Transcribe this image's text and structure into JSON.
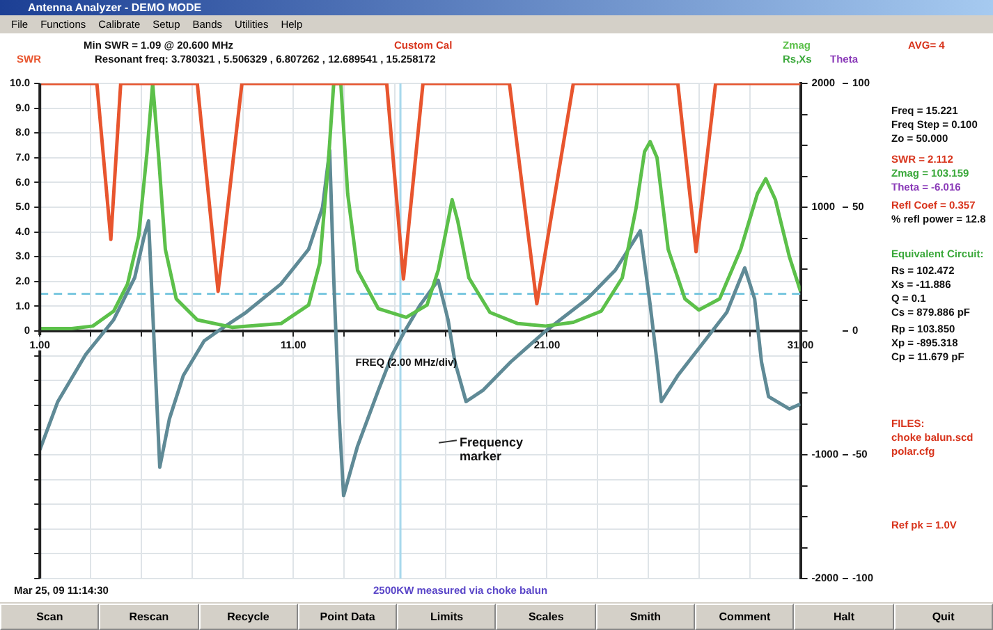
{
  "chart_data": {
    "type": "line",
    "title": "Antenna Analyzer - DEMO MODE",
    "xlabel": "FREQ (2.00 MHz/div)",
    "ylabel": "SWR",
    "y2label": "Rs,Xs",
    "y3label": "Theta",
    "xlim": [
      1,
      31
    ],
    "xticks": [
      {
        "value": 1,
        "label": "1.00"
      },
      {
        "value": 3,
        "label": null
      },
      {
        "value": 5,
        "label": null
      },
      {
        "value": 7,
        "label": null
      },
      {
        "value": 9,
        "label": null
      },
      {
        "value": 11,
        "label": "11.00"
      },
      {
        "value": 13,
        "label": null
      },
      {
        "value": 15,
        "label": null
      },
      {
        "value": 17,
        "label": null
      },
      {
        "value": 19,
        "label": null
      },
      {
        "value": 21,
        "label": "21.00"
      },
      {
        "value": 23,
        "label": null
      },
      {
        "value": 25,
        "label": null
      },
      {
        "value": 27,
        "label": null
      },
      {
        "value": 29,
        "label": null
      },
      {
        "value": 31,
        "label": "31.00"
      }
    ],
    "ylim": [
      -10,
      10
    ],
    "yticks": [
      {
        "value": -10,
        "label": null
      },
      {
        "value": -9,
        "label": null
      },
      {
        "value": -8,
        "label": null
      },
      {
        "value": -7,
        "label": null
      },
      {
        "value": -6,
        "label": null
      },
      {
        "value": -5,
        "label": null
      },
      {
        "value": -4,
        "label": null
      },
      {
        "value": -3,
        "label": null
      },
      {
        "value": -2,
        "label": null
      },
      {
        "value": -1,
        "label": null
      },
      0,
      {
        "value": 1,
        "label": "1.0"
      },
      {
        "value": 2,
        "label": "2.0"
      },
      {
        "value": 3,
        "label": "3.0"
      },
      {
        "value": 4,
        "label": "4.0"
      },
      {
        "value": 5,
        "label": "5.0"
      },
      {
        "value": 6,
        "label": "6.0"
      },
      {
        "value": 7,
        "label": "7.0"
      },
      {
        "value": 8,
        "label": "8.0"
      },
      {
        "value": 9,
        "label": "9.0"
      },
      {
        "value": 10,
        "label": "10.0"
      }
    ],
    "y2lim": [
      -2000,
      2000
    ],
    "y2ticks": [
      -2000,
      {
        "value": -1750,
        "label": null
      },
      {
        "value": -1500,
        "label": null
      },
      {
        "value": -1250,
        "label": null
      },
      -1000,
      {
        "value": -750,
        "label": null
      },
      {
        "value": -500,
        "label": null
      },
      {
        "value": -250,
        "label": null
      },
      {
        "value": 0,
        "label": null
      },
      {
        "value": 250,
        "label": null
      },
      {
        "value": 500,
        "label": null
      },
      {
        "value": 750,
        "label": null
      },
      1000,
      {
        "value": 1250,
        "label": null
      },
      {
        "value": 1500,
        "label": null
      },
      {
        "value": 1750,
        "label": null
      },
      2000
    ],
    "y3lim": [
      -100,
      100
    ],
    "y3ticks": [
      -100,
      -50,
      0,
      50,
      100
    ],
    "grid": true,
    "legend": "top right",
    "marker": "none",
    "line_style": "solid",
    "series": [
      {
        "color": "#e8552e",
        "x": [
          1,
          3.25,
          3.8,
          4.19,
          7.21,
          8.03,
          8.97,
          14.68,
          15.34,
          16.11,
          19.52,
          20.6,
          22.04,
          26.16,
          26.88,
          27.65,
          31
        ],
        "values": [
          10,
          10,
          3.7,
          10,
          10,
          1.6,
          10,
          10,
          2.1,
          10,
          10,
          1.1,
          10,
          10,
          3.2,
          10,
          10
        ]
      },
      {
        "name": "Zmag",
        "color": "#5cc04a",
        "axis": "y2",
        "x": [
          1,
          2.26,
          3.09,
          3.91,
          4.46,
          4.9,
          5.23,
          5.45,
          5.67,
          5.95,
          6.38,
          7.21,
          8.58,
          10.51,
          11.6,
          12.04,
          12.37,
          12.59,
          12.87,
          13.14,
          13.53,
          14.35,
          15.45,
          16.27,
          16.71,
          17.1,
          17.26,
          17.48,
          17.92,
          18.75,
          19.85,
          20.95,
          22.04,
          23.14,
          23.97,
          24.52,
          24.85,
          25.07,
          25.34,
          25.78,
          26.44,
          26.99,
          27.81,
          28.64,
          29.3,
          29.63,
          30.01,
          30.56,
          31
        ],
        "values": [
          20,
          20,
          40,
          160,
          380,
          770,
          1450,
          2000,
          1450,
          660,
          260,
          90,
          30,
          60,
          210,
          550,
          1340,
          2000,
          2000,
          1110,
          490,
          180,
          110,
          210,
          490,
          890,
          1060,
          890,
          430,
          150,
          60,
          40,
          70,
          160,
          430,
          1000,
          1450,
          1530,
          1400,
          660,
          260,
          170,
          260,
          660,
          1110,
          1230,
          1060,
          600,
          320
        ]
      },
      {
        "color": "#5f8a96",
        "axis": "y2",
        "x": [
          1,
          1.71,
          2.81,
          3.91,
          4.74,
          5.12,
          5.29,
          5.73,
          6.11,
          6.66,
          7.48,
          8.03,
          9.13,
          10.51,
          11.6,
          12.15,
          12.43,
          12.59,
          12.81,
          12.98,
          13.53,
          14.35,
          14.9,
          15.34,
          16,
          16.71,
          17.1,
          17.37,
          17.81,
          18.47,
          19.57,
          20.95,
          22.59,
          23.69,
          24.68,
          25.07,
          25.34,
          25.51,
          26.16,
          26.99,
          28.09,
          28.8,
          29.19,
          29.46,
          29.74,
          30.56,
          31
        ],
        "values": [
          -960,
          -570,
          -190,
          90,
          430,
          770,
          890,
          -1100,
          -710,
          -360,
          -80,
          0,
          150,
          380,
          660,
          1000,
          1460,
          430,
          -710,
          -1330,
          -930,
          -480,
          -190,
          -20,
          210,
          410,
          90,
          -250,
          -570,
          -480,
          -250,
          0,
          260,
          490,
          810,
          210,
          -250,
          -570,
          -360,
          -140,
          150,
          510,
          260,
          -250,
          -530,
          -630,
          -590
        ]
      }
    ],
    "ref_lines": [
      {
        "axis": "x",
        "value": 15.221,
        "color": "#a8d8ec",
        "line_style": "solid"
      },
      {
        "axis": "y",
        "value": 1.5,
        "color": "#7cc8e0",
        "line_style": "dashed"
      }
    ],
    "annotations": [
      "File",
      "Functions",
      "Calibrate",
      "Setup",
      "Bands",
      "Utilities",
      "Help",
      "Min SWR =  1.09 @ 20.600 MHz",
      "Resonant freq:  3.780321 , 5.506329 , 6.807262 , 12.689541 , 15.258172",
      "Custom Cal",
      "AVG= 4",
      "Freq = 15.221",
      "Freq Step = 0.100",
      "Zo = 50.000",
      "SWR = 2.112",
      "Zmag = 103.159",
      "Theta = -6.016",
      "Refl Coef = 0.357",
      "% refl power = 12.8",
      "Equivalent Circuit:",
      "Rs = 102.472",
      "Xs = -11.886",
      "Q = 0.1",
      "Cs = 879.886 pF",
      "Rp = 103.850",
      "Xp = -895.318",
      "Cp = 11.679 pF",
      "FILES:",
      "choke balun.scd",
      "polar.cfg",
      "Ref pk = 1.0V",
      "Mar 25, 09  11:14:30",
      "2500KW measured via  choke balun",
      "Scan",
      "Rescan",
      "Recycle",
      "Point Data",
      "Limits",
      "Scales",
      "Smith",
      "Comment",
      "Halt",
      "Quit",
      "Frequency marker"
    ]
  }
}
